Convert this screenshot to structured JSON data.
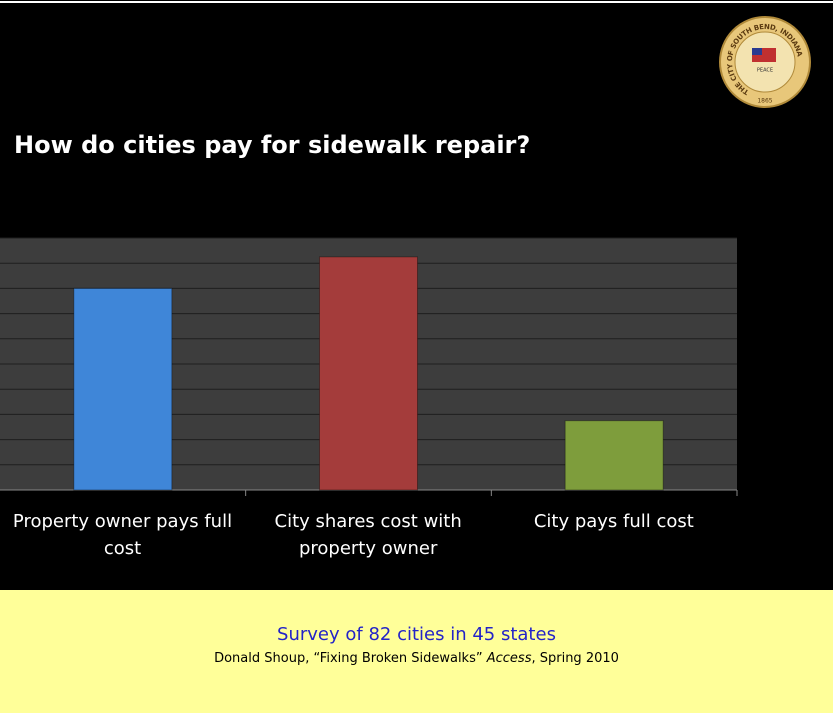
{
  "chart_data": {
    "type": "bar",
    "title": "How do cities pay for sidewalk repair?",
    "categories": [
      "Property owner pays full cost",
      "City shares cost with property owner",
      "City pays full cost"
    ],
    "values": [
      32,
      37,
      11
    ],
    "colors": [
      "#3f86d8",
      "#a43c3b",
      "#7e9d3c"
    ],
    "ylim": [
      0,
      40
    ],
    "yticks": [
      0,
      4,
      8,
      12,
      16,
      20,
      24,
      28,
      32,
      36,
      40
    ],
    "grid": true
  },
  "logo": {
    "ring": "THE CITY OF SOUTH BEND, INDIANA",
    "motto": "PEACE",
    "year": "1865"
  },
  "footer": {
    "survey": "Survey of 82 cities in 45 states",
    "citation": [
      "Donald Shoup, “Fixing Broken Sidewalks” ",
      "Access",
      ", Spring 2010"
    ]
  }
}
